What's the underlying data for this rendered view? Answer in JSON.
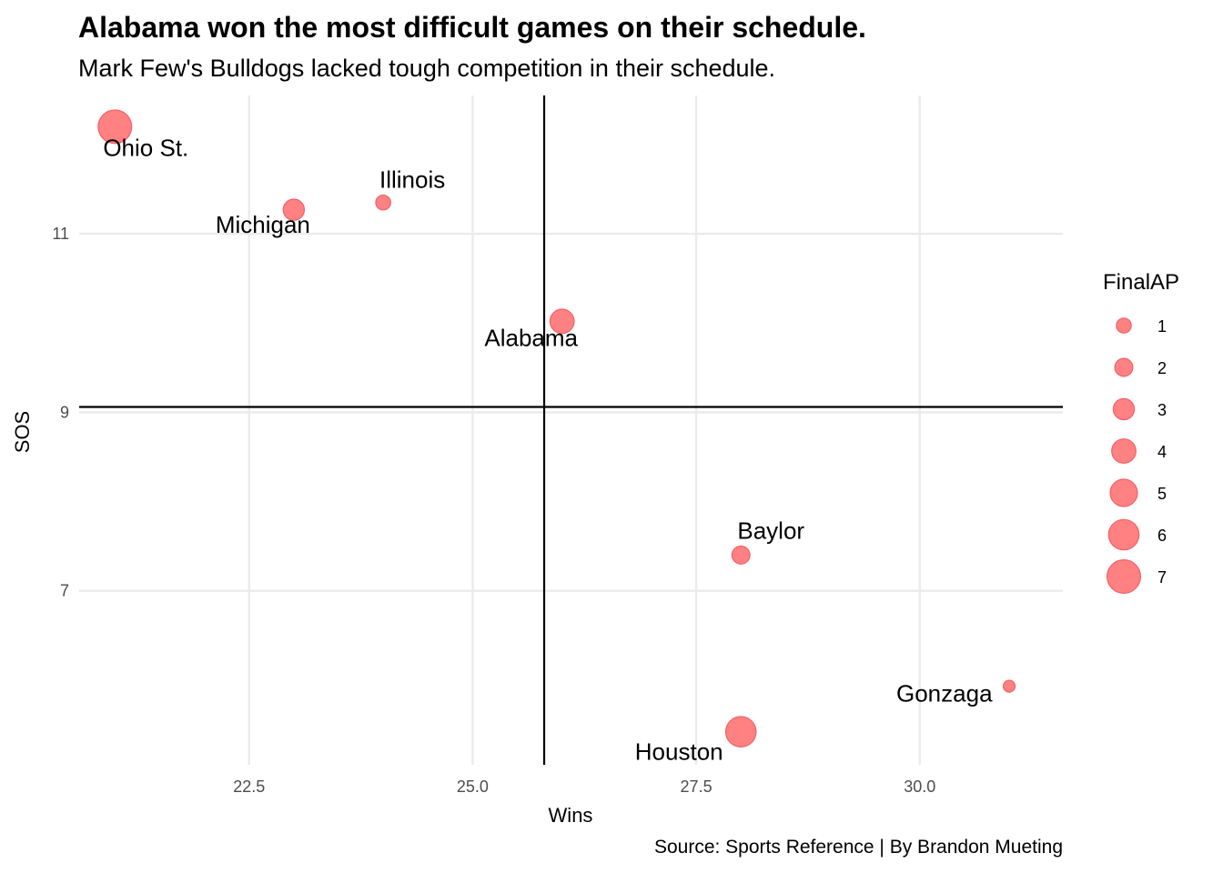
{
  "header": {
    "title": "Alabama won the most difficult games on their schedule.",
    "subtitle": "Mark Few's Bulldogs lacked tough competition in their schedule.",
    "caption": "Source: Sports Reference | By Brandon Mueting"
  },
  "colors": {
    "point_fill": "#ff6b6b",
    "point_stroke": "#f4606a",
    "grid": "#ebebeb",
    "reference_line": "#000000",
    "tick_text": "#4d4d4d"
  },
  "chart_data": {
    "type": "scatter",
    "title": "Alabama won the most difficult games on their schedule.",
    "subtitle": "Mark Few's Bulldogs lacked tough competition in their schedule.",
    "xlabel": "Wins",
    "ylabel": "SOS",
    "xlim": [
      20.6,
      31.6
    ],
    "ylim": [
      5.05,
      12.55
    ],
    "x_ticks": [
      22.5,
      25.0,
      27.5,
      30.0
    ],
    "x_tick_labels": [
      "22.5",
      "25.0",
      "27.5",
      "30.0"
    ],
    "y_ticks": [
      7,
      9,
      11
    ],
    "y_tick_labels": [
      "7",
      "9",
      "11"
    ],
    "grid": true,
    "reference_lines": {
      "x": 25.8,
      "y": 9.06
    },
    "points": [
      {
        "team": "Ohio St.",
        "wins": 21,
        "sos": 12.2,
        "final_ap": 7,
        "label_pos": "below"
      },
      {
        "team": "Illinois",
        "wins": 24,
        "sos": 11.35,
        "final_ap": 1,
        "label_pos": "above"
      },
      {
        "team": "Michigan",
        "wins": 23,
        "sos": 11.27,
        "final_ap": 3,
        "label_pos": "below"
      },
      {
        "team": "Alabama",
        "wins": 26,
        "sos": 10.02,
        "final_ap": 4,
        "label_pos": "below"
      },
      {
        "team": "Baylor",
        "wins": 28,
        "sos": 7.4,
        "final_ap": 2,
        "label_pos": "above"
      },
      {
        "team": "Gonzaga",
        "wins": 31,
        "sos": 5.93,
        "final_ap": 0,
        "label_pos": "left"
      },
      {
        "team": "Houston",
        "wins": 28,
        "sos": 5.42,
        "final_ap": 6,
        "label_pos": "below"
      }
    ],
    "legend": {
      "title": "FinalAP",
      "position": "right",
      "entries": [
        {
          "label": "1",
          "value": 1
        },
        {
          "label": "2",
          "value": 2
        },
        {
          "label": "3",
          "value": 3
        },
        {
          "label": "4",
          "value": 4
        },
        {
          "label": "5",
          "value": 5
        },
        {
          "label": "6",
          "value": 6
        },
        {
          "label": "7",
          "value": 7
        }
      ]
    }
  }
}
